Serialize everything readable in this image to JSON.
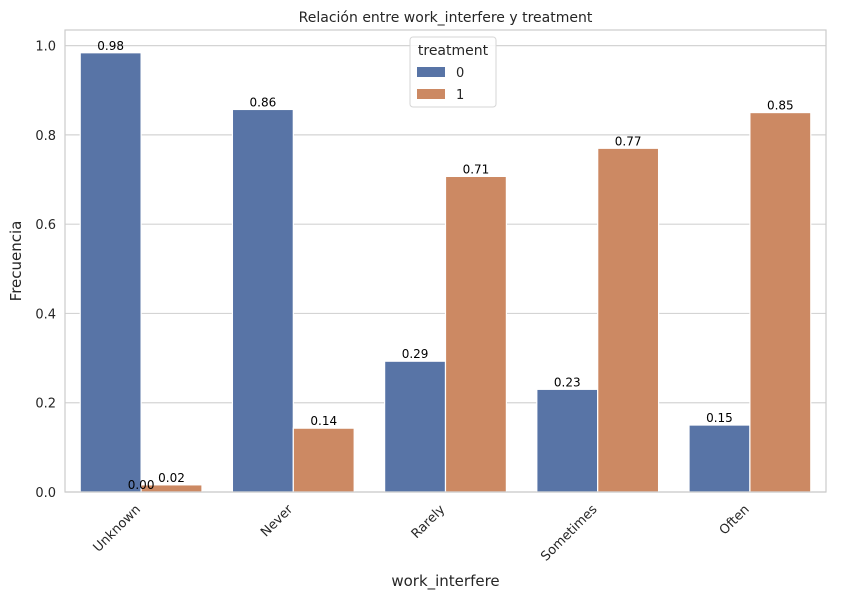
{
  "chart_data": {
    "type": "bar",
    "title": "Relación entre work_interfere y treatment",
    "xlabel": "work_interfere",
    "ylabel": "Frecuencia",
    "categories": [
      "Unknown",
      "Never",
      "Rarely",
      "Sometimes",
      "Often"
    ],
    "series": [
      {
        "name": "0",
        "color": "#5874a6",
        "values": [
          0.984,
          0.857,
          0.293,
          0.23,
          0.15
        ],
        "labels": [
          "0.98",
          "0.86",
          "0.29",
          "0.23",
          "0.15"
        ]
      },
      {
        "name": "1",
        "color": "#cc8963",
        "values": [
          0.016,
          0.143,
          0.707,
          0.77,
          0.85
        ],
        "labels": [
          "0.02",
          "0.14",
          "0.71",
          "0.77",
          "0.85"
        ]
      }
    ],
    "extra_labels": [
      {
        "text": "0.00",
        "category": "Unknown",
        "series": "0",
        "y": 0.0
      }
    ],
    "ylim": [
      0,
      1.035
    ],
    "yticks": [
      "0.0",
      "0.2",
      "0.4",
      "0.6",
      "0.8",
      "1.0"
    ],
    "grid": "y",
    "legend": {
      "title": "treatment",
      "position": "top-center"
    },
    "x_tick_rotation": 45
  }
}
